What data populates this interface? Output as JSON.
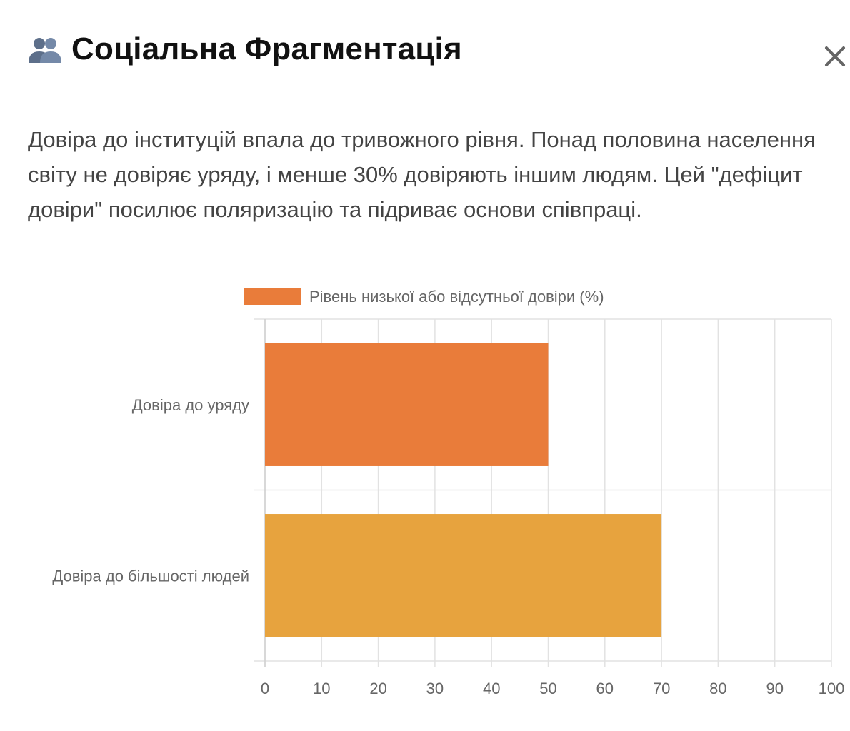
{
  "header": {
    "icon": "busts-in-silhouette-icon",
    "title": "Соціальна Фрагментація",
    "close_icon": "close-icon"
  },
  "description": "Довіра до інституцій впала до тривожного рівня. Понад половина населення світу не довіряє уряду, і менше 30% довіряють іншим людям. Цей \"дефіцит довіри\" посилює поляризацію та підриває основи співпраці.",
  "chart_data": {
    "type": "bar",
    "orientation": "horizontal",
    "categories": [
      "Довіра до уряду",
      "Довіра до більшості людей"
    ],
    "series": [
      {
        "name": "Рівень низької або відсутньої довіри (%)",
        "values": [
          50,
          70
        ],
        "colors": [
          "#e97c3a",
          "#e7a33e"
        ]
      }
    ],
    "xlim": [
      0,
      100
    ],
    "xticks": [
      0,
      10,
      20,
      30,
      40,
      50,
      60,
      70,
      80,
      90,
      100
    ],
    "grid": true,
    "legend_position": "top"
  }
}
